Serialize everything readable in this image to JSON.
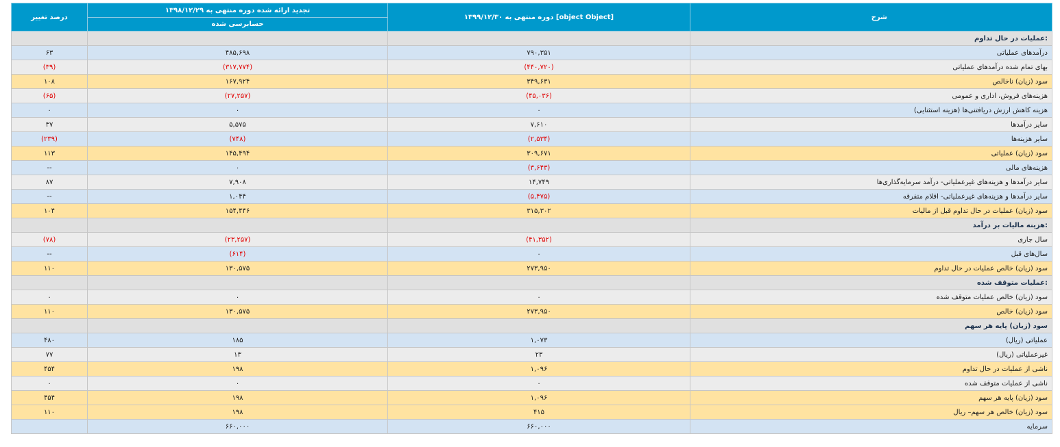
{
  "header": {
    "col_desc": "شرح",
    "col_current": "دوره منتهی به ۱۳۹۹/۱۲/۳۰ [object Object]",
    "col_previous": "تجدید ارائه شده دوره منتهی به ۱۳۹۸/۱۲/۲۹",
    "col_previous_sub": "حسابرسی شده",
    "col_change": "درصد تغییر"
  },
  "colors": {
    "header_bg": "#0099cc",
    "section_bg": "#e0e0e0",
    "row_blue": "#d3e3f3",
    "row_gray": "#ececec",
    "row_yellow": "#ffe3a1",
    "negative": "#e00000"
  },
  "rows": [
    {
      "type": "sec",
      "desc": "عملیات در حال تداوم:",
      "current": "",
      "previous": "",
      "change": ""
    },
    {
      "type": "blue",
      "desc": "درآمدهای عملیاتی",
      "current": "۷۹۰,۳۵۱",
      "previous": "۴۸۵,۶۹۸",
      "change": "۶۳"
    },
    {
      "type": "gray",
      "desc": "بهای تمام شده درآمدهای عملیاتی",
      "current": "(۴۴۰,۷۲۰)",
      "previous": "(۳۱۷,۷۷۴)",
      "change": "(۳۹)"
    },
    {
      "type": "yellow",
      "desc": "سود (زیان) ناخالص",
      "current": "۳۴۹,۶۳۱",
      "previous": "۱۶۷,۹۲۴",
      "change": "۱۰۸"
    },
    {
      "type": "gray",
      "desc": "هزینه‌های فروش، اداری و عمومی",
      "current": "(۴۵,۰۳۶)",
      "previous": "(۲۷,۲۵۷)",
      "change": "(۶۵)"
    },
    {
      "type": "blue",
      "desc": "هزینه کاهش ارزش دریافتنی‌ها (هزینه استثنایی)",
      "current": "۰",
      "previous": "۰",
      "change": "۰"
    },
    {
      "type": "gray",
      "desc": "سایر درآمدها",
      "current": "۷,۶۱۰",
      "previous": "۵,۵۷۵",
      "change": "۳۷"
    },
    {
      "type": "blue",
      "desc": "سایر هزینه‌ها",
      "current": "(۲,۵۳۴)",
      "previous": "(۷۴۸)",
      "change": "(۲۳۹)"
    },
    {
      "type": "yellow",
      "desc": "سود (زیان) عملیاتی",
      "current": "۳۰۹,۶۷۱",
      "previous": "۱۴۵,۴۹۴",
      "change": "۱۱۳"
    },
    {
      "type": "blue",
      "desc": "هزینه‌های مالی",
      "current": "(۳,۶۴۳)",
      "previous": "۰",
      "change": "--"
    },
    {
      "type": "gray",
      "desc": "سایر درآمدها و هزینه‌های غیرعملیاتی- درآمد سرمایه‌گذاری‌ها",
      "current": "۱۴,۷۴۹",
      "previous": "۷,۹۰۸",
      "change": "۸۷"
    },
    {
      "type": "blue",
      "desc": "سایر درآمدها و هزینه‌های غیرعملیاتی- اقلام متفرقه",
      "current": "(۵,۴۷۵)",
      "previous": "۱,۰۴۴",
      "change": "--"
    },
    {
      "type": "yellow",
      "desc": "سود (زیان) عملیات در حال تداوم قبل از مالیات",
      "current": "۳۱۵,۳۰۲",
      "previous": "۱۵۴,۴۴۶",
      "change": "۱۰۴"
    },
    {
      "type": "sec",
      "desc": "هزینه مالیات بر درآمد:",
      "current": "",
      "previous": "",
      "change": ""
    },
    {
      "type": "gray",
      "desc": "سال جاری",
      "current": "(۴۱,۳۵۲)",
      "previous": "(۲۳,۲۵۷)",
      "change": "(۷۸)"
    },
    {
      "type": "blue",
      "desc": "سال‌های قبل",
      "current": "۰",
      "previous": "(۶۱۴)",
      "change": "--"
    },
    {
      "type": "yellow",
      "desc": "سود (زیان) خالص عملیات در حال تداوم",
      "current": "۲۷۳,۹۵۰",
      "previous": "۱۳۰,۵۷۵",
      "change": "۱۱۰"
    },
    {
      "type": "sec",
      "desc": "عملیات متوقف شده:",
      "current": "",
      "previous": "",
      "change": ""
    },
    {
      "type": "gray",
      "desc": "سود (زیان) خالص عملیات متوقف شده",
      "current": "۰",
      "previous": "۰",
      "change": "۰"
    },
    {
      "type": "yellow",
      "desc": "سود (زیان) خالص",
      "current": "۲۷۳,۹۵۰",
      "previous": "۱۳۰,۵۷۵",
      "change": "۱۱۰"
    },
    {
      "type": "sec",
      "desc": "سود (زیان) پایه هر سهم",
      "current": "",
      "previous": "",
      "change": ""
    },
    {
      "type": "blue",
      "desc": "عملیاتی (ریال)",
      "current": "۱,۰۷۳",
      "previous": "۱۸۵",
      "change": "۴۸۰"
    },
    {
      "type": "gray",
      "desc": "غیرعملیاتی (ریال)",
      "current": "۲۳",
      "previous": "۱۳",
      "change": "۷۷"
    },
    {
      "type": "yellow",
      "desc": "ناشی از عملیات در حال تداوم",
      "current": "۱,۰۹۶",
      "previous": "۱۹۸",
      "change": "۴۵۴"
    },
    {
      "type": "gray",
      "desc": "ناشی از عملیات متوقف شده",
      "current": "۰",
      "previous": "۰",
      "change": "۰"
    },
    {
      "type": "yellow",
      "desc": "سود (زیان) پایه هر سهم",
      "current": "۱,۰۹۶",
      "previous": "۱۹۸",
      "change": "۴۵۴"
    },
    {
      "type": "yellow",
      "desc": "سود (زیان) خالص هر سهم– ریال",
      "current": "۴۱۵",
      "previous": "۱۹۸",
      "change": "۱۱۰"
    },
    {
      "type": "blue",
      "desc": "سرمایه",
      "current": "۶۶۰,۰۰۰",
      "previous": "۶۶۰,۰۰۰",
      "change": ""
    }
  ]
}
